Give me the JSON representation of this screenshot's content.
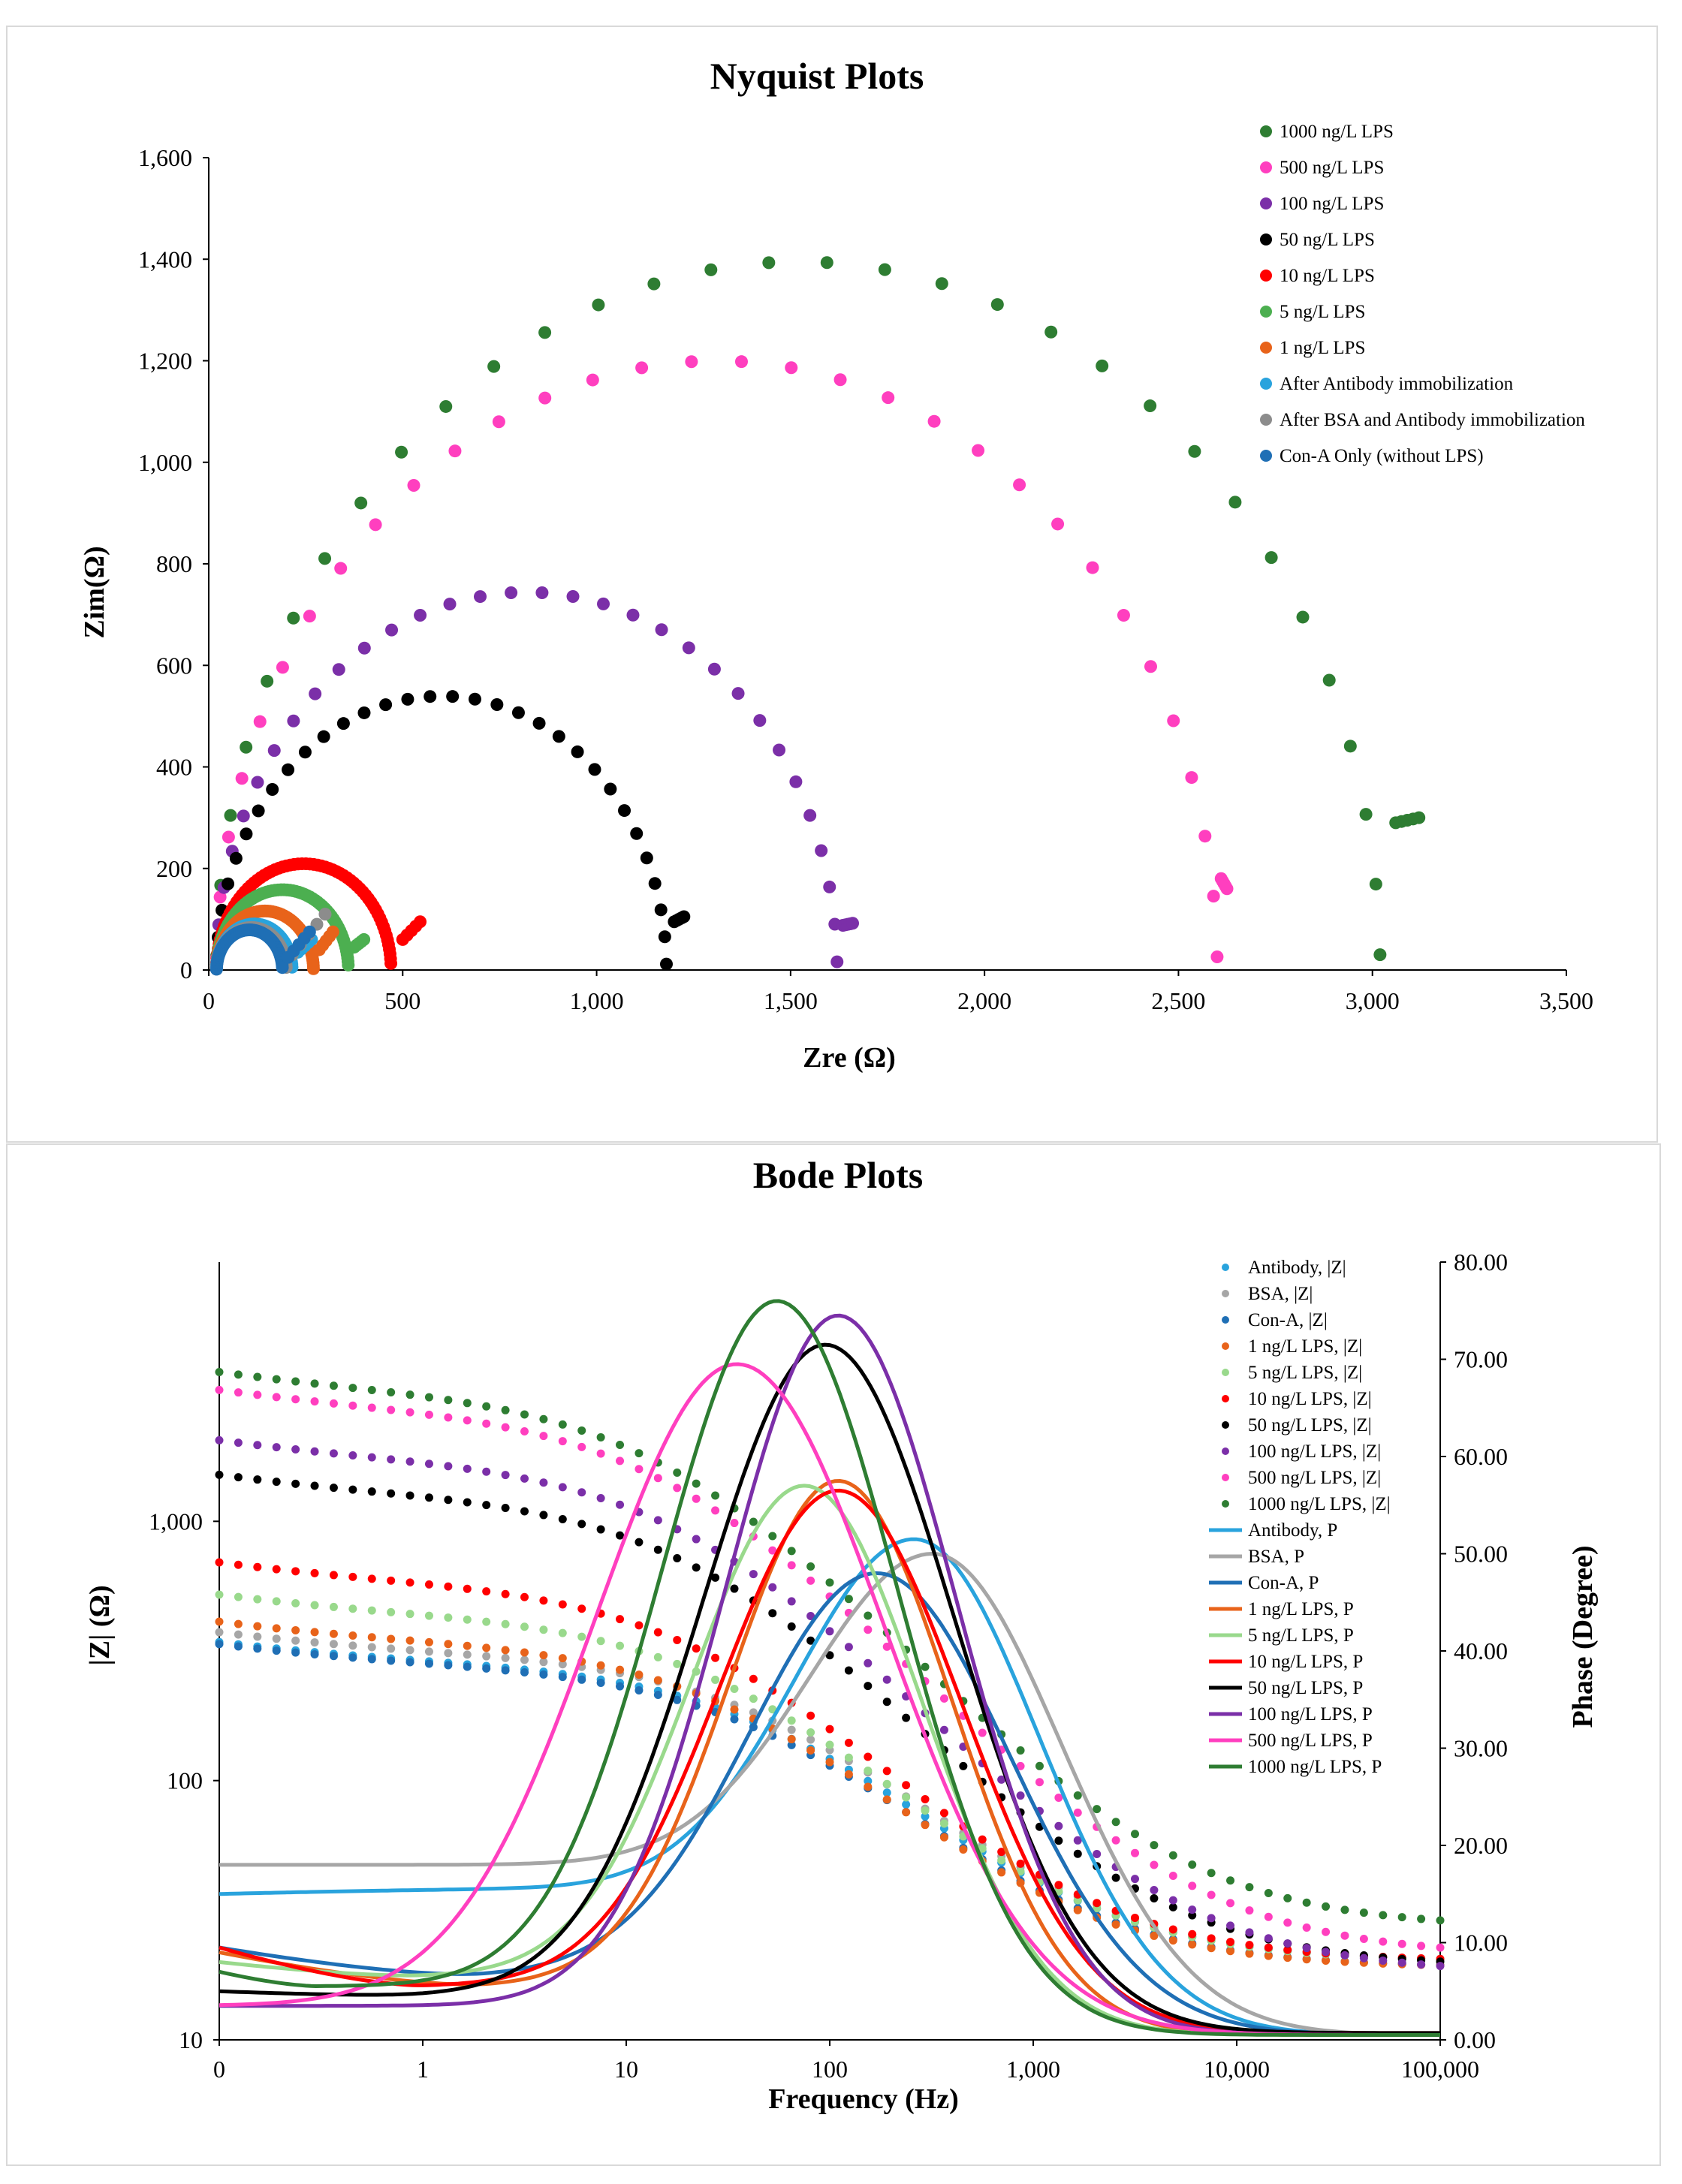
{
  "chart_data": [
    {
      "type": "scatter",
      "title": "Nyquist Plots",
      "xlabel": "Zre (Ω)",
      "ylabel": "Zim(Ω)",
      "xlim": [
        0,
        3500
      ],
      "ylim": [
        0,
        1600
      ],
      "x_ticks": [
        0,
        500,
        1000,
        1500,
        2000,
        2500,
        3000,
        3500
      ],
      "y_ticks": [
        0,
        200,
        400,
        600,
        800,
        1000,
        1200,
        1400,
        1600
      ],
      "x_tick_labels": [
        "0",
        "500",
        "1,000",
        "1,500",
        "2,000",
        "2,500",
        "3,000",
        "3,500"
      ],
      "y_tick_labels": [
        "0",
        "200",
        "400",
        "600",
        "800",
        "1,000",
        "1,200",
        "1,400",
        "1,600"
      ],
      "legend_position": "top-right",
      "series": [
        {
          "name": "1000 ng/L LPS",
          "color": "#2e7d32",
          "R": 3020,
          "tail": [
            3060,
            3120,
            290,
            300
          ],
          "step": 0.1
        },
        {
          "name": "500 ng/L LPS",
          "color": "#ff3fbf",
          "R": 2600,
          "tail": [
            2610,
            2625,
            180,
            160
          ],
          "step": 0.1
        },
        {
          "name": "100 ng/L LPS",
          "color": "#7b2fa8",
          "R": 1620,
          "tail": [
            1635,
            1660,
            88,
            92
          ],
          "step": 0.1
        },
        {
          "name": "50 ng/L LPS",
          "color": "#000000",
          "R": 1180,
          "tail": [
            1200,
            1225,
            95,
            105
          ],
          "step": 0.1
        },
        {
          "name": "10 ng/L LPS",
          "color": "#ff0000",
          "R": 470,
          "tail": [
            500,
            545,
            60,
            95
          ],
          "step": 0.045
        },
        {
          "name": "5 ng/L LPS",
          "color": "#4caf50",
          "R": 360,
          "tail": [
            375,
            400,
            45,
            60
          ],
          "step": 0.045
        },
        {
          "name": "1 ng/L LPS",
          "color": "#e8631a",
          "R": 270,
          "tail": [
            285,
            320,
            40,
            75
          ],
          "step": 0.05
        },
        {
          "name": "After Antibody immobilization",
          "color": "#29a3dd",
          "R": 215,
          "tail": [
            230,
            265,
            35,
            60
          ],
          "step": 0.06
        },
        {
          "name": "After BSA and Antibody immobilization",
          "color": "#8c8c8c",
          "R": 200,
          "tail": [
            215,
            300,
            30,
            110
          ],
          "step": 0.06
        },
        {
          "name": "Con-A Only (without LPS)",
          "color": "#1f6fb5",
          "R": 190,
          "tail": [
            205,
            260,
            25,
            75
          ],
          "step": 0.06
        }
      ]
    },
    {
      "type": "line",
      "title": "Bode Plots",
      "xlabel": "Frequency (Hz)",
      "ylabel_left": "|Z| (Ω)",
      "ylabel_right": "Phase (Degree)",
      "x_scale": "log",
      "xlim": [
        0.1,
        100000
      ],
      "ylim_left": [
        10,
        10000
      ],
      "ylim_right": [
        0,
        80
      ],
      "x_tick_labels": [
        "0",
        "1",
        "10",
        "100",
        "1,000",
        "10,000",
        "100,000"
      ],
      "y_left_tick_labels": [
        "10",
        "100",
        "1,000"
      ],
      "y_right_tick_labels": [
        "0.00",
        "10.00",
        "20.00",
        "30.00",
        "40.00",
        "50.00",
        "60.00",
        "70.00",
        "80.00"
      ],
      "legend_position": "top-right",
      "magnitude_series": [
        {
          "name": "Antibody, |Z|",
          "color": "#29a3dd",
          "Z0": 275,
          "Zinf": 20,
          "fc": 60
        },
        {
          "name": "BSA, |Z|",
          "color": "#a6a6a6",
          "Z0": 300,
          "Zinf": 20,
          "fc": 60
        },
        {
          "name": "Con-A, |Z|",
          "color": "#1f6fb5",
          "Z0": 270,
          "Zinf": 19,
          "fc": 55
        },
        {
          "name": "1 ng/L LPS, |Z|",
          "color": "#e8631a",
          "Z0": 330,
          "Zinf": 19,
          "fc": 40
        },
        {
          "name": "5 ng/L LPS, |Z|",
          "color": "#99d98c",
          "Z0": 420,
          "Zinf": 20,
          "fc": 35
        },
        {
          "name": "10 ng/L LPS, |Z|",
          "color": "#ff0000",
          "Z0": 560,
          "Zinf": 20,
          "fc": 28
        },
        {
          "name": "50 ng/L LPS, |Z|",
          "color": "#000000",
          "Z0": 1220,
          "Zinf": 19,
          "fc": 25
        },
        {
          "name": "100 ng/L LPS, |Z|",
          "color": "#7b2fa8",
          "Z0": 1660,
          "Zinf": 18,
          "fc": 22
        },
        {
          "name": "500 ng/L LPS, |Z|",
          "color": "#ff3fbf",
          "Z0": 2600,
          "Zinf": 21,
          "fc": 18
        },
        {
          "name": "1000 ng/L LPS, |Z|",
          "color": "#2e7d32",
          "Z0": 3050,
          "Zinf": 27,
          "fc": 17
        }
      ],
      "phase_series": [
        {
          "name": "Antibody, P",
          "color": "#29a3dd",
          "peak": 51.5,
          "fpeak": 260,
          "w": 0.82,
          "low": 15.5,
          "fmin": 3,
          "start": 15.0,
          "end": 0.5
        },
        {
          "name": "BSA, P",
          "color": "#a6a6a6",
          "peak": 50.0,
          "fpeak": 320,
          "w": 0.85,
          "low": 18.0,
          "fmin": 3,
          "start": 18.0,
          "end": 0.5
        },
        {
          "name": "Con-A, P",
          "color": "#1f6fb5",
          "peak": 48.0,
          "fpeak": 170,
          "w": 0.88,
          "low": 6.5,
          "fmin": 2,
          "start": 9.5,
          "end": 0.5
        },
        {
          "name": "1 ng/L LPS, P",
          "color": "#e8631a",
          "peak": 57.5,
          "fpeak": 110,
          "w": 0.75,
          "low": 5.5,
          "fmin": 2,
          "start": 9.0,
          "end": 0.5
        },
        {
          "name": "5 ng/L LPS, P",
          "color": "#99d98c",
          "peak": 57.0,
          "fpeak": 75,
          "w": 0.78,
          "low": 6.5,
          "fmin": 1,
          "start": 8.0,
          "end": 0.5
        },
        {
          "name": "10 ng/L LPS, P",
          "color": "#ff0000",
          "peak": 56.5,
          "fpeak": 110,
          "w": 0.82,
          "low": 5.5,
          "fmin": 1,
          "start": 9.5,
          "end": 0.7
        },
        {
          "name": "50 ng/L LPS, P",
          "color": "#000000",
          "peak": 71.5,
          "fpeak": 95,
          "w": 0.85,
          "low": 4.5,
          "fmin": 1,
          "start": 5.0,
          "end": 0.7
        },
        {
          "name": "100 ng/L LPS, P",
          "color": "#7b2fa8",
          "peak": 74.5,
          "fpeak": 110,
          "w": 0.78,
          "low": 3.5,
          "fmin": 0.3,
          "start": 3.5,
          "end": 0.5
        },
        {
          "name": "500 ng/L LPS, P",
          "color": "#ff3fbf",
          "peak": 69.5,
          "fpeak": 35,
          "w": 0.98,
          "low": 3.5,
          "fmin": 0.1,
          "start": 3.5,
          "end": 0.5
        },
        {
          "name": "1000 ng/L LPS, P",
          "color": "#2e7d32",
          "peak": 76.0,
          "fpeak": 55,
          "w": 0.8,
          "low": 5.5,
          "fmin": 0.3,
          "start": 7.0,
          "end": 0.5
        }
      ]
    }
  ]
}
